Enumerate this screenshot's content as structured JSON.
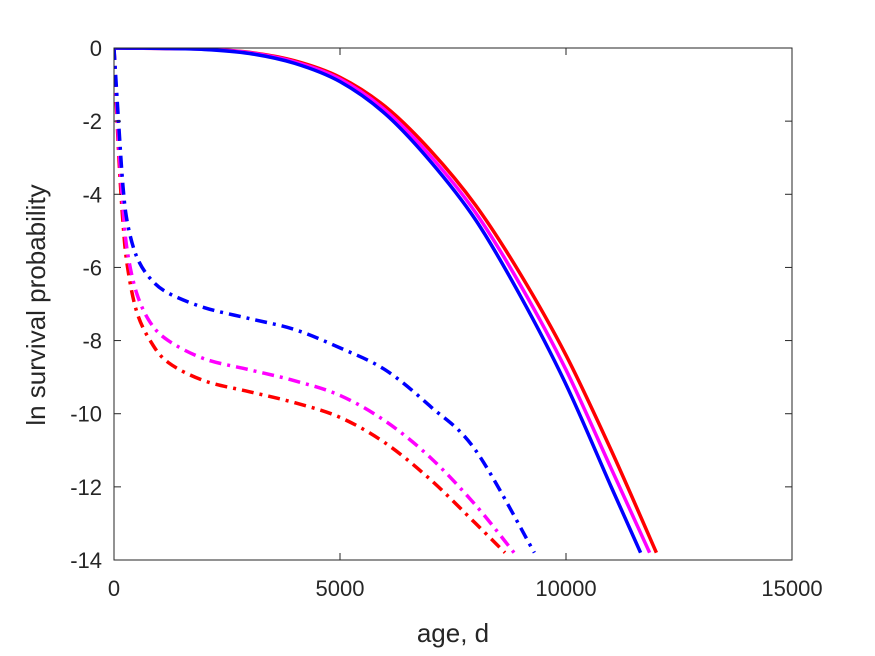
{
  "chart_data": {
    "type": "line",
    "title": "",
    "xlabel": "age, d",
    "ylabel": "ln survival probability",
    "xlim": [
      0,
      15000
    ],
    "ylim": [
      -14,
      0
    ],
    "xticks": [
      0,
      5000,
      10000,
      15000
    ],
    "xtick_labels": [
      "0",
      "5000",
      "10000",
      "15000"
    ],
    "yticks": [
      0,
      -2,
      -4,
      -6,
      -8,
      -10,
      -12,
      -14
    ],
    "ytick_labels": [
      "0",
      "-2",
      "-4",
      "-6",
      "-8",
      "-10",
      "-12",
      "-14"
    ],
    "grid": false,
    "legend": "none",
    "series": [
      {
        "color": "#ff0000",
        "style": "solid",
        "x": [
          0,
          1000,
          2000,
          3000,
          4000,
          5000,
          6000,
          7000,
          8000,
          9000,
          10000,
          11000,
          12000
        ],
        "y": [
          0,
          -0.01,
          -0.03,
          -0.12,
          -0.35,
          -0.8,
          -1.6,
          -2.8,
          -4.3,
          -6.2,
          -8.4,
          -11.0,
          -13.8
        ]
      },
      {
        "color": "#ff00ff",
        "style": "solid",
        "x": [
          0,
          1000,
          2000,
          3000,
          4000,
          5000,
          6000,
          7000,
          8000,
          9000,
          10000,
          11000,
          11850
        ],
        "y": [
          0,
          -0.01,
          -0.03,
          -0.13,
          -0.38,
          -0.85,
          -1.7,
          -2.95,
          -4.5,
          -6.5,
          -8.8,
          -11.5,
          -13.8
        ]
      },
      {
        "color": "#0000ff",
        "style": "solid",
        "x": [
          0,
          1000,
          2000,
          3000,
          4000,
          5000,
          6000,
          7000,
          8000,
          9000,
          10000,
          11000,
          11650
        ],
        "y": [
          0,
          -0.01,
          -0.04,
          -0.15,
          -0.42,
          -0.92,
          -1.8,
          -3.1,
          -4.7,
          -6.8,
          -9.2,
          -12.0,
          -13.8
        ]
      },
      {
        "color": "#ff0000",
        "style": "dashdot",
        "x": [
          0,
          100,
          200,
          300,
          500,
          800,
          1200,
          2000,
          3000,
          4000,
          5000,
          6000,
          7000,
          8000,
          8650
        ],
        "y": [
          0,
          -2.8,
          -4.8,
          -6.0,
          -7.2,
          -8.0,
          -8.6,
          -9.1,
          -9.4,
          -9.7,
          -10.1,
          -10.8,
          -11.8,
          -13.0,
          -13.8
        ]
      },
      {
        "color": "#ff00ff",
        "style": "dashdot",
        "x": [
          0,
          100,
          200,
          300,
          500,
          800,
          1200,
          2000,
          3000,
          4000,
          5000,
          6000,
          7000,
          8000,
          8850
        ],
        "y": [
          0,
          -2.5,
          -4.4,
          -5.6,
          -6.7,
          -7.5,
          -8.0,
          -8.5,
          -8.8,
          -9.1,
          -9.5,
          -10.2,
          -11.2,
          -12.5,
          -13.8
        ]
      },
      {
        "color": "#0000ff",
        "style": "dashdot",
        "x": [
          0,
          100,
          200,
          300,
          500,
          800,
          1200,
          2000,
          3000,
          4000,
          5000,
          6000,
          7000,
          8000,
          9300
        ],
        "y": [
          0,
          -2.0,
          -3.8,
          -4.8,
          -5.7,
          -6.3,
          -6.7,
          -7.1,
          -7.4,
          -7.7,
          -8.2,
          -8.8,
          -9.8,
          -11.0,
          -13.8
        ]
      }
    ]
  }
}
